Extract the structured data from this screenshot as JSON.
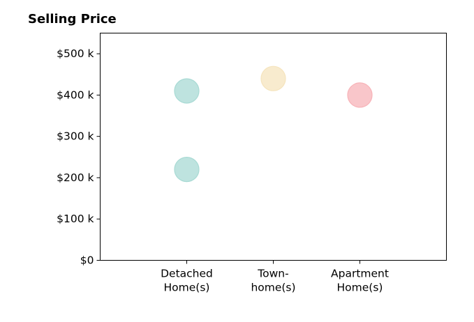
{
  "chart_data": {
    "type": "scatter",
    "title": "Selling Price",
    "xlabel": "",
    "ylabel": "",
    "categories": [
      [
        "Detached",
        "Home(s)"
      ],
      [
        "Town-",
        "home(s)"
      ],
      [
        "Apartment",
        "Home(s)"
      ]
    ],
    "x_range": [
      0,
      4
    ],
    "ylim": [
      0,
      550000
    ],
    "y_ticks": [
      {
        "value": 0,
        "label": "$0"
      },
      {
        "value": 100000,
        "label": "$100 k"
      },
      {
        "value": 200000,
        "label": "$200 k"
      },
      {
        "value": 300000,
        "label": "$300 k"
      },
      {
        "value": 400000,
        "label": "$400 k"
      },
      {
        "value": 500000,
        "label": "$500 k"
      }
    ],
    "grid": false,
    "points": [
      {
        "category": 1,
        "value": 410000,
        "color": "#a8dad4"
      },
      {
        "category": 1,
        "value": 220000,
        "color": "#a8dad4"
      },
      {
        "category": 2,
        "value": 440000,
        "color": "#f5e4bd"
      },
      {
        "category": 3,
        "value": 400000,
        "color": "#f7b3b8"
      }
    ]
  }
}
